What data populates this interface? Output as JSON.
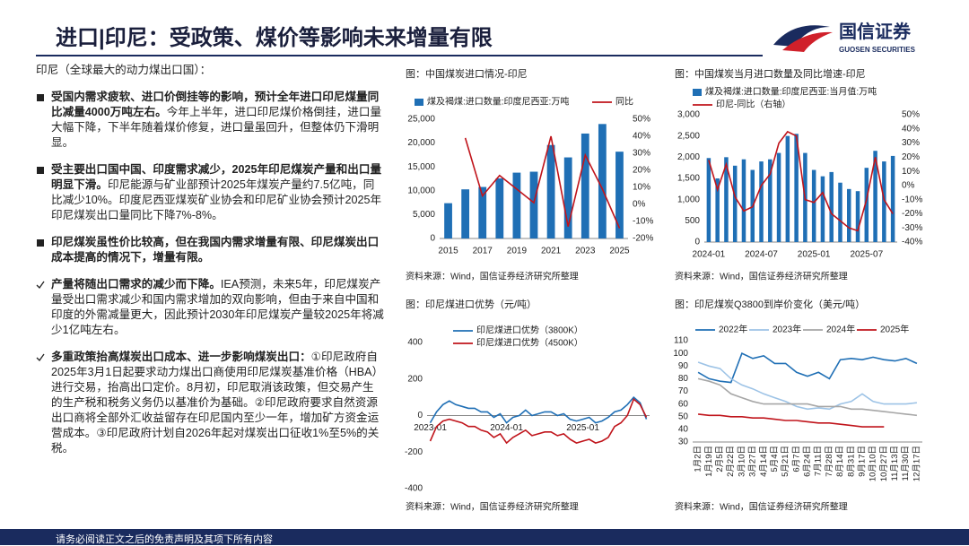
{
  "header": {
    "title": "进口|印尼：受政策、煤价等影响未来增量有限",
    "logo_cn": "国信证券",
    "logo_en": "GUOSEN SECURITIES"
  },
  "text": {
    "intro": "印尼（全球最大的动力煤出口国）：",
    "bullets": [
      {
        "marker": "square",
        "bold": "受国内需求疲软、进口价倒挂等的影响，预计全年进口印尼煤量同比减量4000万吨左右。",
        "text": "今年上半年，进口印尼煤价格倒挂，进口量大幅下降，下半年随着煤价修复，进口量虽回升，但整体仍下滑明显。"
      },
      {
        "marker": "square",
        "bold": "受主要出口国中国、印度需求减少，2025年印尼煤炭产量和出口量明显下滑。",
        "text": "印尼能源与矿业部预计2025年煤炭产量约7.5亿吨，同比减少10%。印度尼西亚煤炭矿业协会和印尼矿业协会预计2025年印尼煤炭出口量同比下降7%-8%。"
      },
      {
        "marker": "square",
        "bold": "印尼煤炭虽性价比较高，但在我国内需求增量有限、印尼煤炭出口成本提高的情况下，增量有限。"
      },
      {
        "marker": "check",
        "bold": "产量将随出口需求的减少而下降。",
        "text": "IEA预测，未来5年，印尼煤炭产量受出口需求减少和国内需求增加的双向影响，但由于来自中国和印度的外需减量更大，因此预计2030年印尼煤炭产量较2025年将减少1亿吨左右。"
      },
      {
        "marker": "check",
        "bold": "多重政策抬高煤炭出口成本、进一步影响煤炭出口：",
        "text": "①印尼政府自2025年3月1日起要求动力煤出口商使用印尼煤炭基准价格（HBA）进行交易，抬高出口定价。8月初，印尼取消该政策，但交易产生的生产税和税务义务仍以基准价为基础。②印尼政府要求自然资源出口商将全部外汇收益留存在印尼国内至少一年，增加矿方资金运营成本。③印尼政府计划自2026年起对煤炭出口征收1%至5%的关税。"
      }
    ]
  },
  "footer": "请务必阅读正文之后的免责声明及其项下所有内容",
  "chart_data": [
    {
      "type": "combo",
      "title": "图：中国煤炭进口情况-印尼",
      "source": "资料来源：Wind，国信证券经济研究所整理",
      "x": [
        2015,
        2016,
        2017,
        2018,
        2019,
        2020,
        2021,
        2022,
        2023,
        2024,
        2025
      ],
      "xlim": [
        2014.5,
        2025.5
      ],
      "xticks": [
        2015,
        2017,
        2019,
        2021,
        2023,
        2025
      ],
      "series": [
        {
          "name": "煤及褐煤:进口数量:印度尼西亚:万吨",
          "type": "bar",
          "color": "#1f6fb5",
          "values": [
            7400,
            10300,
            10800,
            12600,
            13800,
            14000,
            19600,
            17000,
            22000,
            24000,
            18200
          ]
        },
        {
          "name": "同比",
          "type": "line",
          "axis": "y2",
          "color": "#c0141b",
          "values": [
            null,
            39,
            5,
            17,
            9,
            1,
            40,
            -13,
            29,
            9,
            -14
          ]
        }
      ],
      "ylim": [
        0,
        25000
      ],
      "yticks": [
        0,
        {
          "value": 5000,
          "label": "5,000"
        },
        {
          "value": 10000,
          "label": "10,000"
        },
        {
          "value": 15000,
          "label": "15,000"
        },
        {
          "value": 20000,
          "label": "20,000"
        },
        {
          "value": 25000,
          "label": "25,000"
        }
      ],
      "y2lim": [
        -20,
        50
      ],
      "y2ticks": [
        {
          "value": -20,
          "label": "-20%"
        },
        {
          "value": -10,
          "label": "-10%"
        },
        {
          "value": 0,
          "label": "0%"
        },
        {
          "value": 10,
          "label": "10%"
        },
        {
          "value": 20,
          "label": "20%"
        },
        {
          "value": 30,
          "label": "30%"
        },
        {
          "value": 40,
          "label": "40%"
        },
        {
          "value": 50,
          "label": "50%"
        }
      ],
      "legend": "top"
    },
    {
      "type": "combo",
      "title": "图：中国煤炭当月进口数量及同比增速-印尼",
      "source": "资料来源：Wind，国信证券经济研究所整理",
      "x": [
        "2024-01",
        "2024-02",
        "2024-03",
        "2024-04",
        "2024-05",
        "2024-06",
        "2024-07",
        "2024-08",
        "2024-09",
        "2024-10",
        "2024-11",
        "2024-12",
        "2025-01",
        "2025-02",
        "2025-03",
        "2025-04",
        "2025-05",
        "2025-06",
        "2025-07",
        "2025-08",
        "2025-09",
        "2025-10"
      ],
      "xticks": [
        "2024-01",
        "2024-07",
        "2025-01",
        "2025-07"
      ],
      "series": [
        {
          "name": "煤及褐煤:进口数量:印度尼西亚:当月值:万吨",
          "type": "bar",
          "color": "#1f6fb5",
          "values": [
            1980,
            1500,
            2000,
            1800,
            1950,
            1700,
            1900,
            1950,
            2100,
            2500,
            2550,
            2100,
            1700,
            1550,
            1650,
            1400,
            1250,
            1200,
            1750,
            2150,
            1900,
            2030
          ]
        },
        {
          "name": "印尼-同比（右轴）",
          "type": "line",
          "axis": "y2",
          "color": "#c0141b",
          "values": [
            18,
            -3,
            15,
            -8,
            -18,
            -15,
            0,
            8,
            30,
            38,
            35,
            -10,
            -12,
            -5,
            -20,
            -25,
            -30,
            -32,
            -10,
            20,
            -10,
            -20
          ]
        }
      ],
      "ylim": [
        0,
        3000
      ],
      "yticks": [
        0,
        500,
        {
          "value": 1000,
          "label": "1,000"
        },
        {
          "value": 1500,
          "label": "1,500"
        },
        {
          "value": 2000,
          "label": "2,000"
        },
        {
          "value": 2500,
          "label": "2,500"
        },
        {
          "value": 3000,
          "label": "3,000"
        }
      ],
      "y2lim": [
        -40,
        50
      ],
      "y2ticks": [
        {
          "value": -40,
          "label": "-40%"
        },
        {
          "value": -30,
          "label": "-30%"
        },
        {
          "value": -20,
          "label": "-20%"
        },
        {
          "value": -10,
          "label": "-10%"
        },
        {
          "value": 0,
          "label": "0%"
        },
        {
          "value": 10,
          "label": "10%"
        },
        {
          "value": 20,
          "label": "20%"
        },
        {
          "value": 30,
          "label": "30%"
        },
        {
          "value": 40,
          "label": "40%"
        },
        {
          "value": 50,
          "label": "50%"
        }
      ],
      "legend": "top"
    },
    {
      "type": "line",
      "title": "图：印尼煤进口优势（元/吨）",
      "source": "资料来源：Wind，国信证券经济研究所整理",
      "x": [
        "2023-01",
        "2023-02",
        "2023-03",
        "2023-04",
        "2023-05",
        "2023-06",
        "2023-07",
        "2023-08",
        "2023-09",
        "2023-10",
        "2023-11",
        "2023-12",
        "2024-01",
        "2024-02",
        "2024-03",
        "2024-04",
        "2024-05",
        "2024-06",
        "2024-07",
        "2024-08",
        "2024-09",
        "2024-10",
        "2024-11",
        "2024-12",
        "2025-01",
        "2025-02",
        "2025-03",
        "2025-04",
        "2025-05",
        "2025-06",
        "2025-07",
        "2025-08",
        "2025-09",
        "2025-10",
        "2025-11"
      ],
      "xticks": [
        "2023-01",
        "2024-01",
        "2025-01"
      ],
      "series": [
        {
          "name": "印尼煤进口优势（3800K）",
          "color": "#1f6fb5",
          "values": [
            -40,
            20,
            60,
            80,
            60,
            50,
            40,
            40,
            20,
            20,
            -10,
            10,
            -40,
            -10,
            0,
            30,
            0,
            10,
            20,
            20,
            0,
            10,
            -20,
            -30,
            -20,
            -10,
            -40,
            -30,
            -10,
            20,
            30,
            60,
            100,
            70,
            -20
          ]
        },
        {
          "name": "印尼煤进口优势（4500K）",
          "color": "#c0141b",
          "values": [
            -140,
            -60,
            -30,
            -20,
            -30,
            -40,
            -60,
            -60,
            -80,
            -90,
            -120,
            -100,
            -150,
            -120,
            -100,
            -80,
            -110,
            -100,
            -90,
            -90,
            -110,
            -100,
            -130,
            -150,
            -140,
            -130,
            -150,
            -140,
            -120,
            -60,
            -40,
            0,
            90,
            60,
            -10
          ]
        }
      ],
      "ylim": [
        -400,
        400
      ],
      "yticks": [
        -400,
        -200,
        0,
        200,
        400
      ],
      "legend": "top"
    },
    {
      "type": "line",
      "title": "图：印尼煤炭Q3800到岸价变化（美元/吨）",
      "source": "资料来源：Wind，国信证券经济研究所整理",
      "categories": [
        "1月2日",
        "1月19日",
        "2月5日",
        "2月22日",
        "3月10日",
        "3月27日",
        "4月14日",
        "5月4日",
        "5月21日",
        "6月7日",
        "6月24日",
        "7月11日",
        "7月28日",
        "8月14日",
        "8月31日",
        "9月17日",
        "10月10日",
        "10月27日",
        "11月13日",
        "11月30日",
        "12月17日"
      ],
      "series": [
        {
          "name": "2022年",
          "color": "#1f6fb5",
          "values": [
            85,
            80,
            78,
            77,
            100,
            96,
            98,
            92,
            92,
            85,
            82,
            85,
            80,
            95,
            96,
            95,
            97,
            95,
            94,
            96,
            92
          ]
        },
        {
          "name": "2023年",
          "color": "#9dc3e6",
          "values": [
            93,
            90,
            88,
            80,
            75,
            72,
            68,
            65,
            62,
            58,
            56,
            57,
            56,
            60,
            62,
            68,
            62,
            60,
            60,
            60,
            61
          ]
        },
        {
          "name": "2024年",
          "color": "#a6a6a6",
          "values": [
            80,
            78,
            75,
            68,
            65,
            62,
            60,
            60,
            60,
            60,
            60,
            58,
            58,
            58,
            56,
            56,
            55,
            54,
            53,
            52,
            51
          ]
        },
        {
          "name": "2025年",
          "color": "#c0141b",
          "values": [
            52,
            51,
            51,
            50,
            50,
            49,
            49,
            48,
            47,
            47,
            46,
            45,
            45,
            44,
            43,
            42,
            42,
            42,
            null,
            null,
            null
          ]
        }
      ],
      "ylim": [
        30,
        110
      ],
      "yticks": [
        30,
        40,
        50,
        60,
        70,
        80,
        90,
        100,
        110
      ],
      "legend": "top"
    }
  ]
}
